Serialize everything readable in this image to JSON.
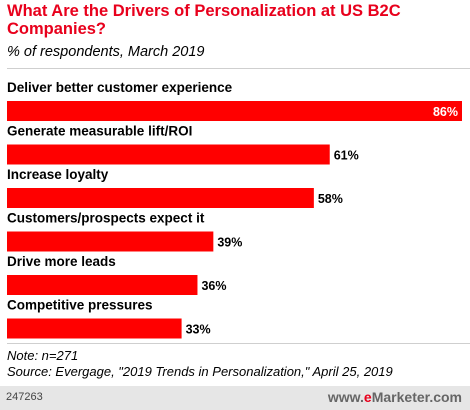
{
  "header": {
    "title": "What Are the Drivers of Personalization at US B2C Companies?",
    "subtitle": "% of respondents, March 2019"
  },
  "footnotes": {
    "note": "Note: n=271",
    "source": "Source: Evergage, \"2019 Trends in Personalization,\" April 25, 2019"
  },
  "footer": {
    "id": "247263",
    "brand_prefix": "www.",
    "brand_e": "e",
    "brand_rest": "Marketer",
    "brand_suffix": ".com"
  },
  "colors": {
    "accent": "#e8001c",
    "bar": "#ff0000"
  },
  "chart_data": {
    "type": "bar",
    "orientation": "horizontal",
    "title": "What Are the Drivers of Personalization at US B2C Companies?",
    "subtitle": "% of respondents, March 2019",
    "categories": [
      "Deliver better customer experience",
      "Generate measurable lift/ROI",
      "Increase loyalty",
      "Customers/prospects expect it",
      "Drive more leads",
      "Competitive pressures"
    ],
    "values": [
      86,
      61,
      58,
      39,
      36,
      33
    ],
    "value_labels": [
      "86%",
      "61%",
      "58%",
      "39%",
      "36%",
      "33%"
    ],
    "xlim": [
      0,
      86
    ],
    "grid": false
  }
}
